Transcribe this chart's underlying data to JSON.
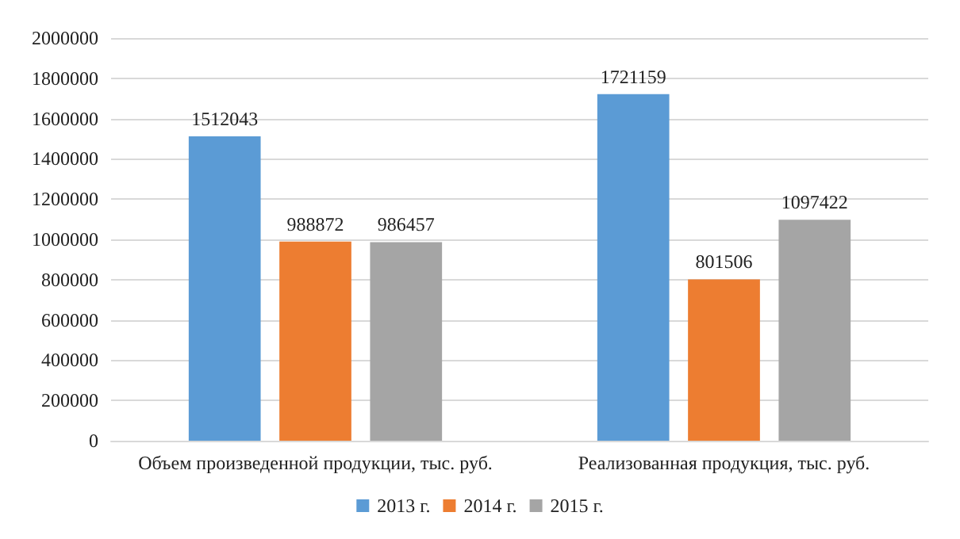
{
  "chart_data": {
    "type": "bar",
    "categories": [
      "Объем произведенной продукции, тыс. руб.",
      "Реализованная продукция, тыс. руб."
    ],
    "series": [
      {
        "name": "2013 г.",
        "color": "#5b9bd5",
        "values": [
          1512043,
          1721159
        ]
      },
      {
        "name": "2014 г.",
        "color": "#ed7d31",
        "values": [
          988872,
          801506
        ]
      },
      {
        "name": "2015 г.",
        "color": "#a5a5a5",
        "values": [
          986457,
          1097422
        ]
      }
    ],
    "ylim": [
      0,
      2000000
    ],
    "yticks": [
      0,
      200000,
      400000,
      600000,
      800000,
      1000000,
      1200000,
      1400000,
      1600000,
      1800000,
      2000000
    ],
    "grid": "y",
    "legend": "bottom",
    "data_labels": true
  }
}
